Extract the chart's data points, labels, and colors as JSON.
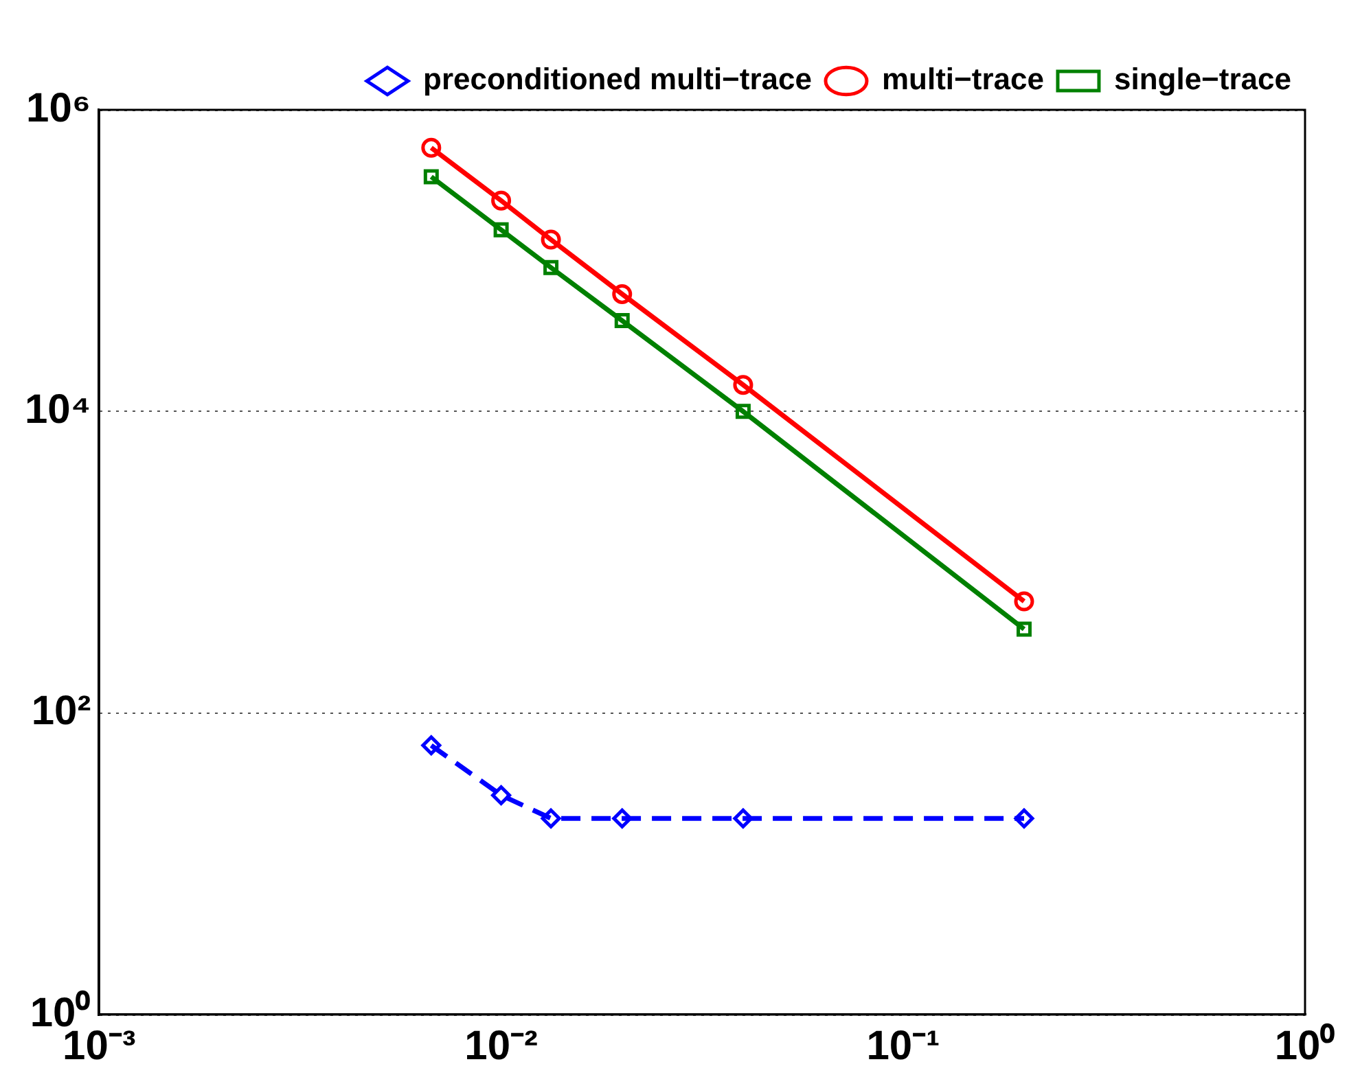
{
  "chart_data": {
    "type": "line",
    "log": "xy",
    "grid": "y",
    "legend": "top right",
    "x": [
      0.0067,
      0.01,
      0.0133,
      0.02,
      0.04,
      0.2
    ],
    "xlim": [
      0.001,
      1
    ],
    "ylim": [
      1,
      1000000
    ],
    "xticks": [
      {
        "value": 0.001,
        "label": "10⁻³"
      },
      {
        "value": 0.01,
        "label": "10⁻²"
      },
      {
        "value": 0.1,
        "label": "10⁻¹"
      },
      {
        "value": 1,
        "label": "10⁰"
      }
    ],
    "yticks": [
      {
        "value": 1,
        "label": "10⁰"
      },
      {
        "value": 100,
        "label": "10²"
      },
      {
        "value": 10000,
        "label": "10⁴"
      },
      {
        "value": 1000000,
        "label": "10⁶"
      }
    ],
    "series": [
      {
        "name": "preconditioned multi−trace",
        "color": "#0000ff",
        "marker": "diamond",
        "line_style": "dashed",
        "values": [
          61,
          28.5,
          20,
          20,
          20,
          20
        ]
      },
      {
        "name": "multi−trace",
        "color": "#ff0000",
        "marker": "circle",
        "line_style": "solid",
        "values": [
          560000,
          250000,
          138000,
          60000,
          15000,
          550
        ]
      },
      {
        "name": "single−trace",
        "color": "#008000",
        "marker": "square",
        "line_style": "solid",
        "values": [
          360000,
          160000,
          90000,
          40000,
          10000,
          360
        ]
      }
    ]
  }
}
